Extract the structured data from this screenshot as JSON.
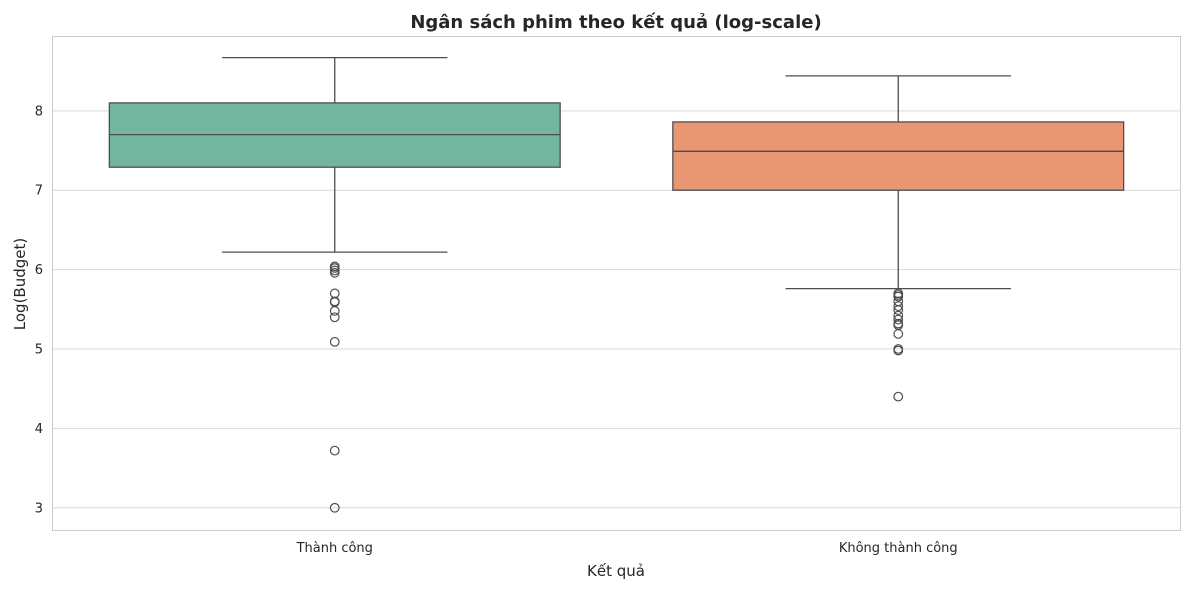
{
  "chart_data": {
    "type": "box",
    "title": "Ngân sách phim theo kết quả (log-scale)",
    "xlabel": "Kết quả",
    "ylabel": "Log(Budget)",
    "ylim": [
      2.72,
      8.93
    ],
    "yticks": [
      3,
      4,
      5,
      6,
      7,
      8
    ],
    "grid": true,
    "categories": [
      "Thành công",
      "Không thành công"
    ],
    "boxes": [
      {
        "category": "Thành công",
        "color": "#73b59f",
        "whisker_low": 6.22,
        "q1": 7.29,
        "median": 7.7,
        "q3": 8.1,
        "whisker_high": 8.67,
        "outliers": [
          6.04,
          6.02,
          5.99,
          5.96,
          5.7,
          5.6,
          5.59,
          5.48,
          5.4,
          5.09,
          3.72,
          3.0
        ]
      },
      {
        "category": "Không thành công",
        "color": "#e99674",
        "whisker_low": 5.76,
        "q1": 7.0,
        "median": 7.49,
        "q3": 7.86,
        "whisker_high": 8.44,
        "outliers": [
          5.7,
          5.68,
          5.66,
          5.6,
          5.54,
          5.49,
          5.42,
          5.37,
          5.32,
          5.3,
          5.19,
          5.0,
          4.98,
          4.4
        ]
      }
    ],
    "colors": {
      "line": "#4d4d4d",
      "grid": "#d9d9d9",
      "frame": "#cccccc"
    }
  }
}
